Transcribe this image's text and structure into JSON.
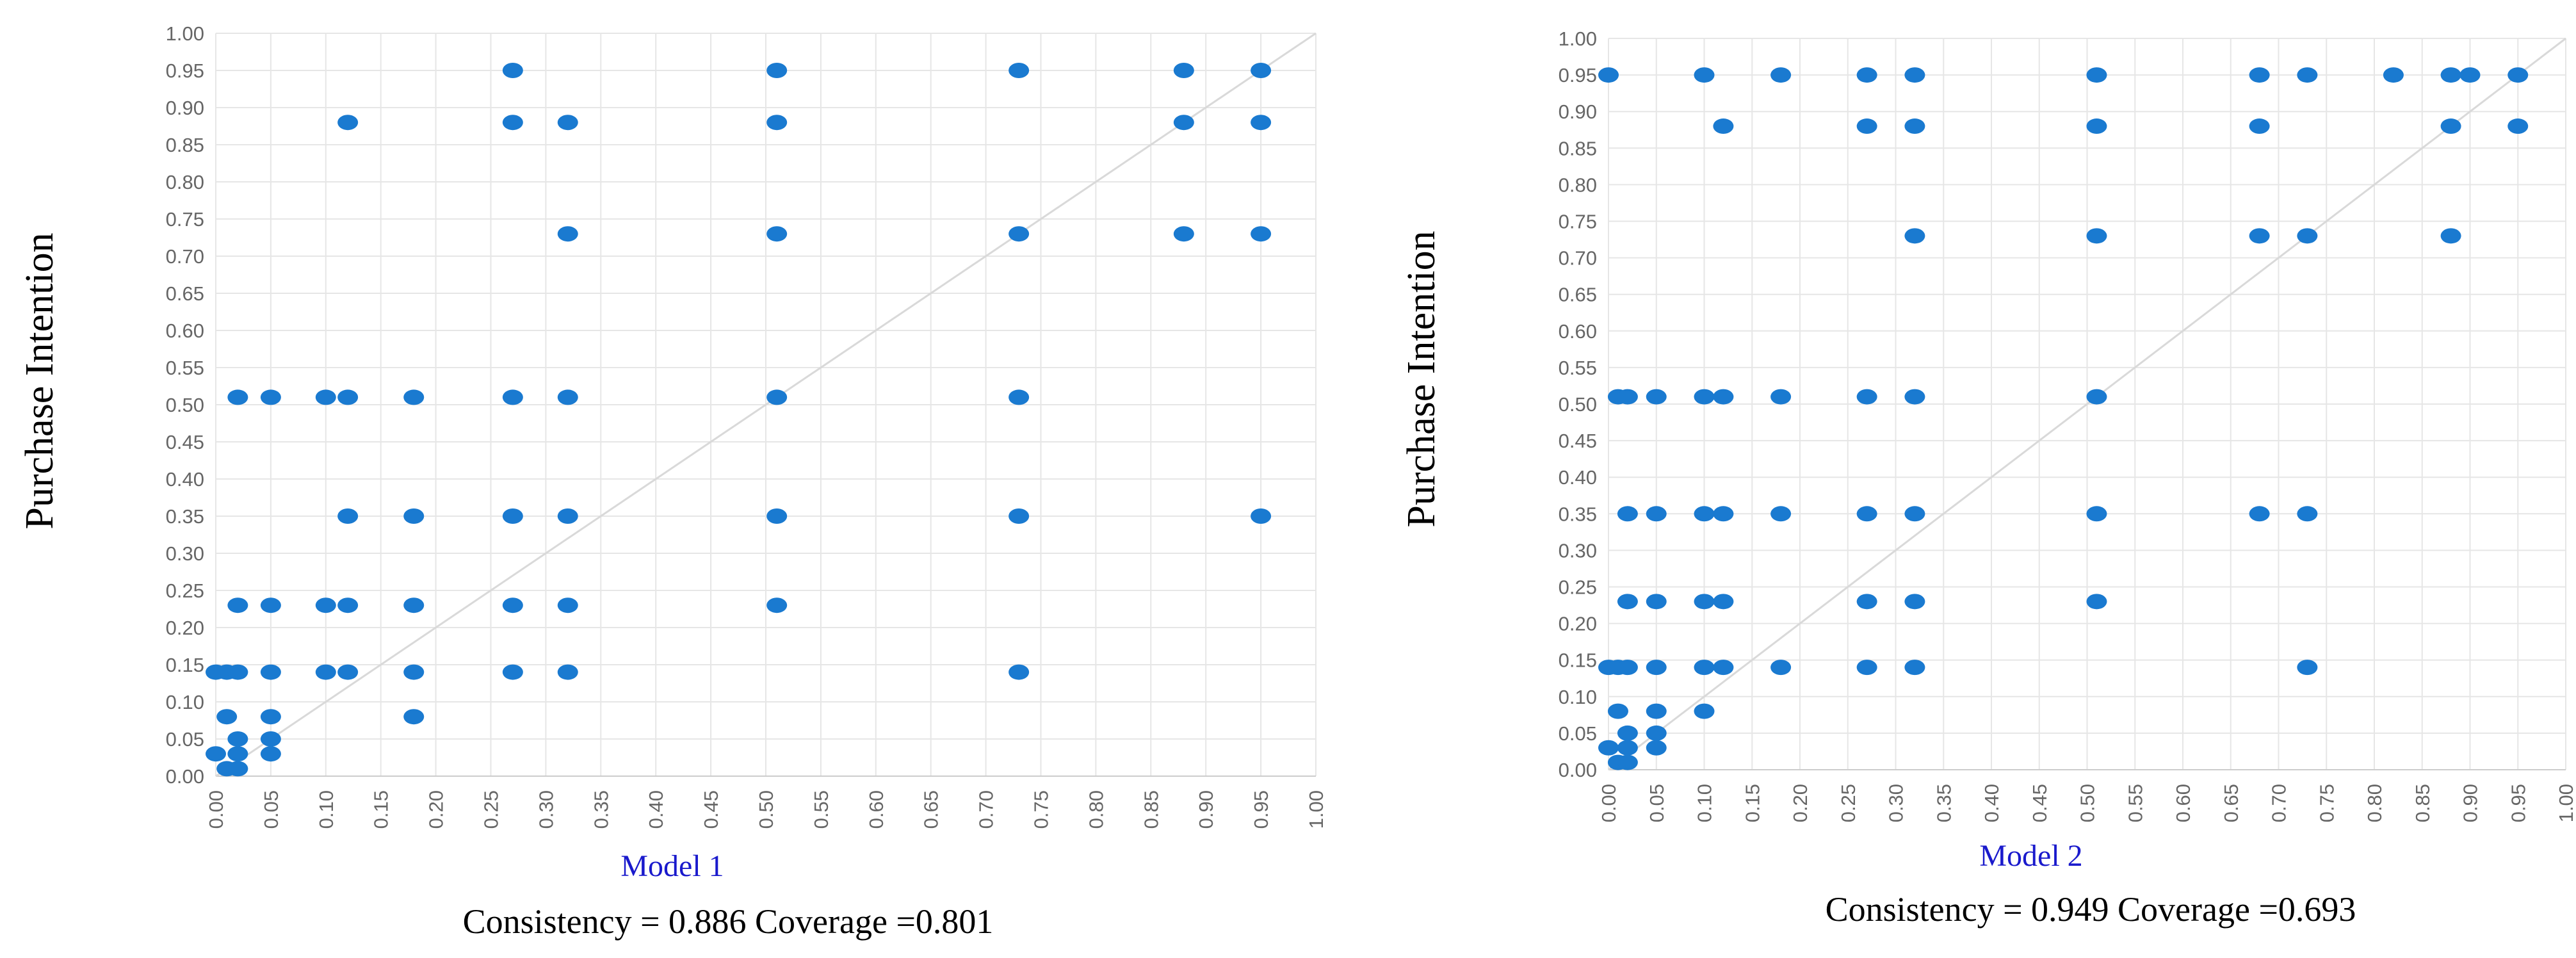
{
  "colors": {
    "point": "#1a7ad0",
    "grid": "#e6e6e6",
    "diagonal": "#d9d9d9",
    "axis": "#cccccc",
    "tick_text": "#666666",
    "model_label": "#1a1acc",
    "text": "#000000"
  },
  "chart_data": [
    {
      "type": "scatter",
      "title": "Model 1",
      "ylabel": "Purchase Intention",
      "xlabel": "",
      "stats_text": "Consistency = 0.886  Coverage =0.801",
      "consistency": 0.886,
      "coverage": 0.801,
      "xlim": [
        0,
        1
      ],
      "ylim": [
        0,
        1
      ],
      "grid": true,
      "diagonal": true,
      "x_ticks": [
        "0.00",
        "0.05",
        "0.10",
        "0.15",
        "0.20",
        "0.25",
        "0.30",
        "0.35",
        "0.40",
        "0.45",
        "0.50",
        "0.55",
        "0.60",
        "0.65",
        "0.70",
        "0.75",
        "0.80",
        "0.85",
        "0.90",
        "0.95",
        "1.00"
      ],
      "y_ticks": [
        "0.00",
        "0.05",
        "0.10",
        "0.15",
        "0.20",
        "0.25",
        "0.30",
        "0.35",
        "0.40",
        "0.45",
        "0.50",
        "0.55",
        "0.60",
        "0.65",
        "0.70",
        "0.75",
        "0.80",
        "0.85",
        "0.90",
        "0.95",
        "1.00"
      ],
      "points": [
        [
          0.27,
          0.95
        ],
        [
          0.51,
          0.95
        ],
        [
          0.73,
          0.95
        ],
        [
          0.88,
          0.95
        ],
        [
          0.95,
          0.95
        ],
        [
          0.12,
          0.88
        ],
        [
          0.27,
          0.88
        ],
        [
          0.32,
          0.88
        ],
        [
          0.51,
          0.88
        ],
        [
          0.88,
          0.88
        ],
        [
          0.95,
          0.88
        ],
        [
          0.32,
          0.73
        ],
        [
          0.51,
          0.73
        ],
        [
          0.73,
          0.73
        ],
        [
          0.88,
          0.73
        ],
        [
          0.95,
          0.73
        ],
        [
          0.02,
          0.51
        ],
        [
          0.05,
          0.51
        ],
        [
          0.1,
          0.51
        ],
        [
          0.12,
          0.51
        ],
        [
          0.18,
          0.51
        ],
        [
          0.27,
          0.51
        ],
        [
          0.32,
          0.51
        ],
        [
          0.51,
          0.51
        ],
        [
          0.73,
          0.51
        ],
        [
          0.12,
          0.35
        ],
        [
          0.18,
          0.35
        ],
        [
          0.27,
          0.35
        ],
        [
          0.32,
          0.35
        ],
        [
          0.51,
          0.35
        ],
        [
          0.73,
          0.35
        ],
        [
          0.95,
          0.35
        ],
        [
          0.02,
          0.23
        ],
        [
          0.05,
          0.23
        ],
        [
          0.1,
          0.23
        ],
        [
          0.12,
          0.23
        ],
        [
          0.18,
          0.23
        ],
        [
          0.27,
          0.23
        ],
        [
          0.32,
          0.23
        ],
        [
          0.51,
          0.23
        ],
        [
          0.0,
          0.14
        ],
        [
          0.01,
          0.14
        ],
        [
          0.02,
          0.14
        ],
        [
          0.05,
          0.14
        ],
        [
          0.1,
          0.14
        ],
        [
          0.12,
          0.14
        ],
        [
          0.18,
          0.14
        ],
        [
          0.27,
          0.14
        ],
        [
          0.32,
          0.14
        ],
        [
          0.73,
          0.14
        ],
        [
          0.01,
          0.08
        ],
        [
          0.05,
          0.08
        ],
        [
          0.18,
          0.08
        ],
        [
          0.02,
          0.05
        ],
        [
          0.05,
          0.05
        ],
        [
          0.0,
          0.03
        ],
        [
          0.02,
          0.03
        ],
        [
          0.05,
          0.03
        ],
        [
          0.01,
          0.01
        ],
        [
          0.02,
          0.01
        ]
      ]
    },
    {
      "type": "scatter",
      "title": "Model 2",
      "ylabel": "Purchase Intention",
      "xlabel": "",
      "stats_text": "Consistency = 0.949  Coverage =0.693",
      "consistency": 0.949,
      "coverage": 0.693,
      "xlim": [
        0,
        1
      ],
      "ylim": [
        0,
        1
      ],
      "grid": true,
      "diagonal": true,
      "x_ticks": [
        "0.00",
        "0.05",
        "0.10",
        "0.15",
        "0.20",
        "0.25",
        "0.30",
        "0.35",
        "0.40",
        "0.45",
        "0.50",
        "0.55",
        "0.60",
        "0.65",
        "0.70",
        "0.75",
        "0.80",
        "0.85",
        "0.90",
        "0.95",
        "1.00"
      ],
      "y_ticks": [
        "0.00",
        "0.05",
        "0.10",
        "0.15",
        "0.20",
        "0.25",
        "0.30",
        "0.35",
        "0.40",
        "0.45",
        "0.50",
        "0.55",
        "0.60",
        "0.65",
        "0.70",
        "0.75",
        "0.80",
        "0.85",
        "0.90",
        "0.95",
        "1.00"
      ],
      "points": [
        [
          0.0,
          0.95
        ],
        [
          0.1,
          0.95
        ],
        [
          0.18,
          0.95
        ],
        [
          0.27,
          0.95
        ],
        [
          0.32,
          0.95
        ],
        [
          0.51,
          0.95
        ],
        [
          0.68,
          0.95
        ],
        [
          0.73,
          0.95
        ],
        [
          0.82,
          0.95
        ],
        [
          0.88,
          0.95
        ],
        [
          0.9,
          0.95
        ],
        [
          0.95,
          0.95
        ],
        [
          0.12,
          0.88
        ],
        [
          0.27,
          0.88
        ],
        [
          0.32,
          0.88
        ],
        [
          0.51,
          0.88
        ],
        [
          0.68,
          0.88
        ],
        [
          0.88,
          0.88
        ],
        [
          0.95,
          0.88
        ],
        [
          0.32,
          0.73
        ],
        [
          0.51,
          0.73
        ],
        [
          0.68,
          0.73
        ],
        [
          0.73,
          0.73
        ],
        [
          0.88,
          0.73
        ],
        [
          0.01,
          0.51
        ],
        [
          0.02,
          0.51
        ],
        [
          0.05,
          0.51
        ],
        [
          0.1,
          0.51
        ],
        [
          0.12,
          0.51
        ],
        [
          0.18,
          0.51
        ],
        [
          0.27,
          0.51
        ],
        [
          0.32,
          0.51
        ],
        [
          0.51,
          0.51
        ],
        [
          0.02,
          0.35
        ],
        [
          0.05,
          0.35
        ],
        [
          0.1,
          0.35
        ],
        [
          0.12,
          0.35
        ],
        [
          0.18,
          0.35
        ],
        [
          0.27,
          0.35
        ],
        [
          0.32,
          0.35
        ],
        [
          0.51,
          0.35
        ],
        [
          0.68,
          0.35
        ],
        [
          0.73,
          0.35
        ],
        [
          0.02,
          0.23
        ],
        [
          0.05,
          0.23
        ],
        [
          0.1,
          0.23
        ],
        [
          0.12,
          0.23
        ],
        [
          0.27,
          0.23
        ],
        [
          0.32,
          0.23
        ],
        [
          0.51,
          0.23
        ],
        [
          0.0,
          0.14
        ],
        [
          0.01,
          0.14
        ],
        [
          0.02,
          0.14
        ],
        [
          0.05,
          0.14
        ],
        [
          0.1,
          0.14
        ],
        [
          0.12,
          0.14
        ],
        [
          0.18,
          0.14
        ],
        [
          0.27,
          0.14
        ],
        [
          0.32,
          0.14
        ],
        [
          0.73,
          0.14
        ],
        [
          0.01,
          0.08
        ],
        [
          0.05,
          0.08
        ],
        [
          0.1,
          0.08
        ],
        [
          0.02,
          0.05
        ],
        [
          0.05,
          0.05
        ],
        [
          0.0,
          0.03
        ],
        [
          0.02,
          0.03
        ],
        [
          0.05,
          0.03
        ],
        [
          0.01,
          0.01
        ],
        [
          0.02,
          0.01
        ]
      ]
    }
  ]
}
